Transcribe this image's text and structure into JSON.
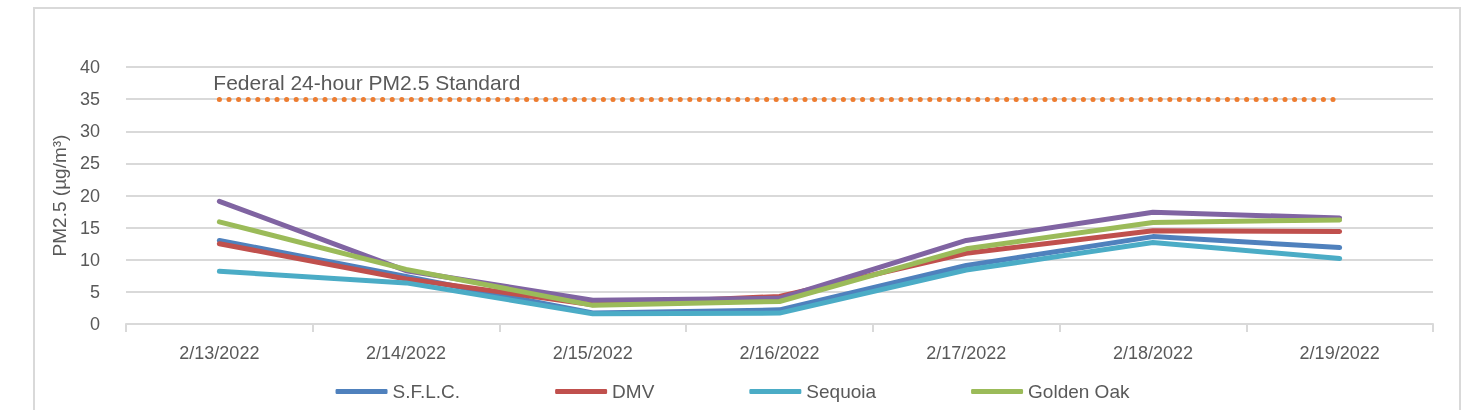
{
  "chart_data": {
    "type": "line",
    "ylabel": "PM2.5 (µg/m³)",
    "categories": [
      "2/13/2022",
      "2/14/2022",
      "2/15/2022",
      "2/16/2022",
      "2/17/2022",
      "2/18/2022",
      "2/19/2022"
    ],
    "series": [
      {
        "name": "S.F.L.C.",
        "color": "#4f81bd",
        "values": [
          13.0,
          7.4,
          1.7,
          2.2,
          9.1,
          13.6,
          11.9
        ]
      },
      {
        "name": "DMV",
        "color": "#c0504d",
        "values": [
          12.5,
          7.0,
          3.0,
          4.3,
          11.0,
          14.5,
          14.4
        ]
      },
      {
        "color": "#8064a2",
        "values": [
          19.1,
          8.3,
          3.7,
          4.0,
          13.0,
          17.4,
          16.5
        ]
      },
      {
        "name": "Sequoia",
        "color": "#4bacc6",
        "values": [
          8.2,
          6.4,
          1.6,
          1.7,
          8.4,
          12.7,
          10.2
        ]
      },
      {
        "name": "Golden Oak",
        "color": "#9bbb59",
        "values": [
          15.9,
          8.5,
          2.9,
          3.5,
          11.7,
          15.8,
          16.2
        ]
      }
    ],
    "ylim": [
      0,
      40
    ],
    "yticks": [
      0,
      5,
      10,
      15,
      20,
      25,
      30,
      35,
      40
    ],
    "grid": "y",
    "legend": "bottom",
    "marker": "none",
    "line_style": "solid",
    "ref_lines": [
      {
        "axis": "y",
        "value": 35,
        "label": "Federal 24-hour PM2.5 Standard",
        "color": "#ed7d31",
        "line_style": "dotted"
      }
    ]
  }
}
